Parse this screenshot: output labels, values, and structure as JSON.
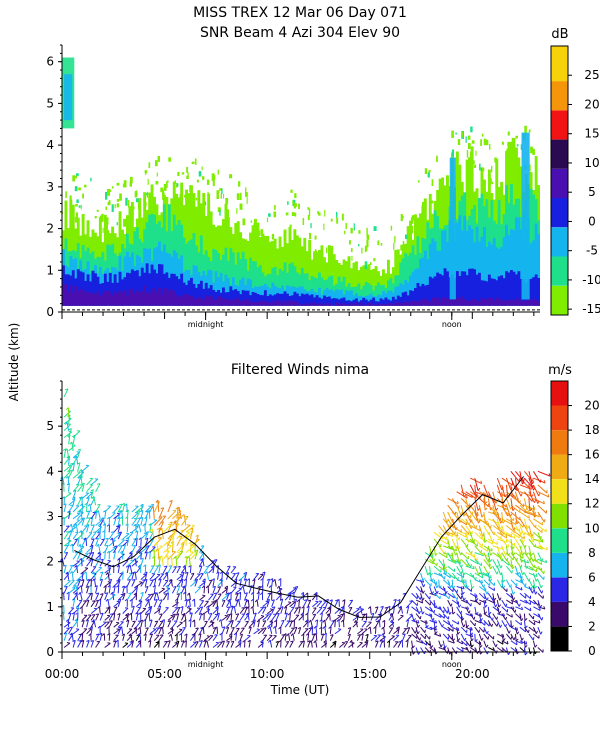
{
  "header": {
    "title_line1": "MISS TREX  12 Mar 06 Day 071",
    "title_line2": "SNR Beam 4 Azi 304 Elev 90"
  },
  "shared": {
    "ylabel": "Altitude (km)",
    "xlabel": "Time (UT)",
    "midnight_label": "midnight",
    "noon_label": "noon",
    "midnight_hour": 7.0,
    "noon_hour": 19.0
  },
  "chart_data": [
    {
      "type": "heatmap",
      "id": "snr",
      "title": "SNR Beam 4 Azi 304 Elev 90",
      "ylabel": "Altitude (km)",
      "ylim": [
        0,
        6.4
      ],
      "yticks": [
        "0",
        "1",
        "2",
        "3",
        "4",
        "5",
        "6"
      ],
      "yticks_values": [
        0,
        1,
        2,
        3,
        4,
        5,
        6
      ],
      "xlim": [
        0,
        23.3
      ],
      "colorbar": {
        "unit": "dB",
        "range": [
          -16,
          30
        ],
        "ticks": [
          "-15",
          "-10",
          "-5",
          "0",
          "5",
          "10",
          "15",
          "20",
          "25"
        ],
        "tick_values": [
          -15,
          -10,
          -5,
          0,
          5,
          10,
          15,
          20,
          25
        ],
        "bands": [
          {
            "from": -16,
            "to": -11,
            "color": "#7fec00"
          },
          {
            "from": -11,
            "to": -6,
            "color": "#1fe08a"
          },
          {
            "from": -6,
            "to": -1,
            "color": "#14b4ee"
          },
          {
            "from": -1,
            "to": 4,
            "color": "#1820e0"
          },
          {
            "from": 4,
            "to": 9,
            "color": "#4a0fb0"
          },
          {
            "from": 9,
            "to": 14,
            "color": "#2a0a50"
          },
          {
            "from": 14,
            "to": 19,
            "color": "#f21414"
          },
          {
            "from": 19,
            "to": 24,
            "color": "#f5960a"
          },
          {
            "from": 24,
            "to": 30,
            "color": "#f5d20a"
          }
        ]
      },
      "layers": [
        {
          "name": "low-snr",
          "color": "#7fec00",
          "hours": [
            0,
            1,
            2,
            3,
            4,
            5,
            6,
            7,
            8,
            9,
            10,
            11,
            12,
            13,
            14,
            15,
            16,
            17,
            18,
            19,
            20,
            21,
            22,
            23.2
          ],
          "top_km": [
            2.4,
            2.2,
            2.0,
            2.1,
            2.5,
            2.8,
            2.7,
            2.6,
            2.3,
            2.0,
            1.8,
            1.9,
            1.5,
            1.4,
            1.2,
            1.0,
            1.1,
            1.9,
            2.6,
            3.3,
            3.4,
            3.1,
            3.6,
            3.2
          ]
        },
        {
          "name": "mid-snr",
          "color": "#1fe08a",
          "hours": [
            0,
            1,
            2,
            3,
            4,
            5,
            6,
            7,
            8,
            9,
            10,
            11,
            12,
            13,
            14,
            15,
            16,
            17,
            18,
            19,
            20,
            21,
            22,
            23.2
          ],
          "top_km": [
            1.7,
            1.5,
            1.4,
            1.6,
            2.0,
            2.3,
            1.9,
            1.5,
            1.4,
            1.2,
            1.0,
            1.1,
            0.9,
            0.8,
            0.7,
            0.6,
            0.7,
            1.4,
            2.0,
            2.5,
            2.6,
            2.3,
            2.8,
            2.5
          ]
        },
        {
          "name": "high-snr",
          "color": "#14b4ee",
          "hours": [
            0,
            1,
            2,
            3,
            4,
            5,
            6,
            7,
            8,
            9,
            10,
            11,
            12,
            13,
            14,
            15,
            16,
            17,
            18,
            19,
            20,
            21,
            22,
            23.2
          ],
          "top_km": [
            1.3,
            1.1,
            1.0,
            1.2,
            1.4,
            1.5,
            1.1,
            0.9,
            0.8,
            0.7,
            0.6,
            0.6,
            0.5,
            0.5,
            0.45,
            0.4,
            0.45,
            0.9,
            1.5,
            2.0,
            2.0,
            1.7,
            2.1,
            1.8
          ]
        },
        {
          "name": "very-high-snr",
          "color": "#1820e0",
          "hours": [
            0,
            1,
            2,
            3,
            4,
            5,
            6,
            7,
            8,
            9,
            10,
            11,
            12,
            13,
            14,
            15,
            16,
            17,
            18,
            19,
            20,
            21,
            22,
            23.2
          ],
          "top_km": [
            1.0,
            0.9,
            0.8,
            0.85,
            1.0,
            1.0,
            0.8,
            0.6,
            0.55,
            0.5,
            0.45,
            0.45,
            0.4,
            0.35,
            0.3,
            0.3,
            0.3,
            0.5,
            0.8,
            1.0,
            0.9,
            0.8,
            0.9,
            0.8
          ]
        },
        {
          "name": "peak-snr",
          "color": "#4a0fb0",
          "hours": [
            0,
            1,
            2,
            3,
            4,
            5,
            6,
            7,
            8,
            9,
            10,
            11,
            12,
            13,
            14,
            15,
            16,
            17,
            18,
            19,
            20,
            21,
            22,
            23.2
          ],
          "top_km": [
            0.6,
            0.5,
            0.45,
            0.45,
            0.55,
            0.5,
            0.4,
            0.35,
            0.3,
            0.3,
            0.25,
            0.25,
            0.2,
            0.2,
            0.2,
            0.2,
            0.2,
            0.25,
            0.3,
            0.35,
            0.3,
            0.3,
            0.3,
            0.3
          ]
        }
      ],
      "patches": [
        {
          "hour_from": 0.0,
          "hour_to": 0.6,
          "alt_from": 4.4,
          "alt_to": 6.1,
          "color": "#1fe08a"
        },
        {
          "hour_from": 0.1,
          "hour_to": 0.5,
          "alt_from": 4.6,
          "alt_to": 5.7,
          "color": "#14b4ee"
        },
        {
          "hour_from": 18.9,
          "hour_to": 19.2,
          "alt_from": 0.3,
          "alt_to": 3.7,
          "color": "#14b4ee"
        },
        {
          "hour_from": 22.4,
          "hour_to": 22.8,
          "alt_from": 0.3,
          "alt_to": 4.3,
          "color": "#14b4ee"
        }
      ]
    },
    {
      "type": "scatter",
      "id": "winds",
      "title": "Filtered Winds nima",
      "ylabel": "Altitude (km)",
      "xlabel": "Time (UT)",
      "ylim": [
        0,
        6.0
      ],
      "yticks": [
        "0",
        "1",
        "2",
        "3",
        "4",
        "5"
      ],
      "yticks_values": [
        0,
        1,
        2,
        3,
        4,
        5
      ],
      "xlim": [
        0,
        23.3
      ],
      "xticks": [
        "00:00",
        "05:00",
        "10:00",
        "15:00",
        "20:00"
      ],
      "xticks_values": [
        0,
        5,
        10,
        15,
        20
      ],
      "colorbar": {
        "unit": "m/s",
        "range": [
          0,
          22
        ],
        "ticks": [
          "0",
          "2",
          "4",
          "6",
          "8",
          "10",
          "12",
          "14",
          "16",
          "18",
          "20"
        ],
        "tick_values": [
          0,
          2,
          4,
          6,
          8,
          10,
          12,
          14,
          16,
          18,
          20
        ],
        "bands": [
          {
            "from": 0,
            "to": 2,
            "color": "#000000"
          },
          {
            "from": 2,
            "to": 4,
            "color": "#3a0a6a"
          },
          {
            "from": 4,
            "to": 6,
            "color": "#2a28e6"
          },
          {
            "from": 6,
            "to": 8,
            "color": "#16b4ee"
          },
          {
            "from": 8,
            "to": 10,
            "color": "#1fe08a"
          },
          {
            "from": 10,
            "to": 12,
            "color": "#82e000"
          },
          {
            "from": 12,
            "to": 14,
            "color": "#f2e01a"
          },
          {
            "from": 14,
            "to": 16,
            "color": "#f0aa14"
          },
          {
            "from": 16,
            "to": 18,
            "color": "#ef7a10"
          },
          {
            "from": 18,
            "to": 20,
            "color": "#ee4410"
          },
          {
            "from": 20,
            "to": 22,
            "color": "#e61010"
          }
        ]
      },
      "wind_top_km": {
        "hours": [
          0,
          1,
          2,
          3,
          4,
          5,
          6,
          7,
          8,
          9,
          10,
          11,
          12,
          13,
          14,
          15,
          16,
          17,
          18,
          19,
          20,
          21,
          22,
          23.2
        ],
        "values": [
          5.9,
          4.0,
          3.3,
          3.1,
          3.2,
          3.2,
          2.9,
          2.0,
          1.8,
          1.6,
          1.6,
          1.4,
          1.2,
          1.1,
          1.0,
          0.9,
          1.0,
          1.3,
          2.6,
          3.6,
          3.9,
          3.8,
          4.1,
          4.1
        ]
      },
      "contour_10ms": {
        "hours": [
          0.6,
          1.5,
          2.5,
          3.5,
          4.5,
          5.5,
          6.5,
          7.5,
          8.5,
          9.5,
          10.5,
          11.5,
          12.5,
          13.5,
          14.5,
          15.5,
          16.5,
          17.5,
          18.5,
          19.5,
          20.5,
          21.5,
          22.5
        ],
        "alt_km": [
          2.4,
          2.0,
          1.8,
          2.1,
          2.4,
          2.6,
          2.3,
          1.8,
          1.6,
          1.5,
          1.3,
          1.2,
          1.2,
          1.0,
          0.9,
          0.8,
          1.1,
          1.9,
          2.6,
          3.1,
          3.4,
          3.3,
          3.8
        ]
      }
    }
  ]
}
